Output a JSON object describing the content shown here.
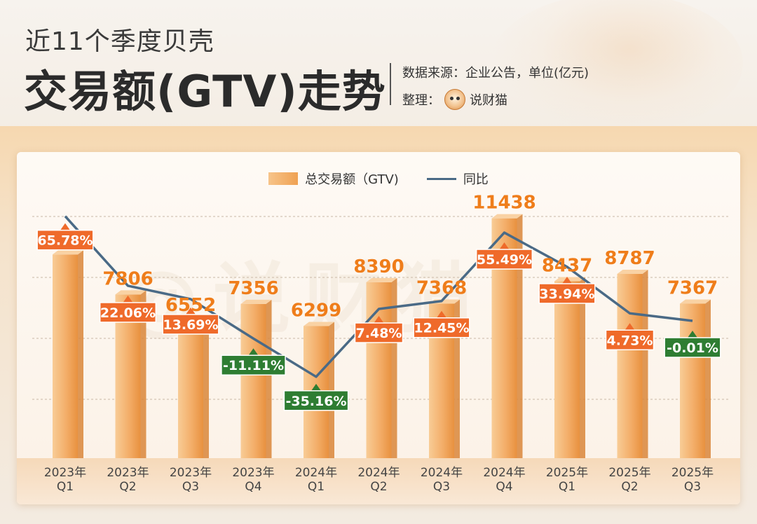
{
  "header": {
    "subtitle": "近11个季度贝壳",
    "title": "交易额(GTV)走势",
    "source": "数据来源：企业公告，单位(亿元)",
    "credit_prefix": "整理：",
    "credit_name": "说财猫"
  },
  "watermark": "@说财猫",
  "colors": {
    "bar_light": "#f7c48a",
    "bar_dark": "#ef9a46",
    "value_text": "#ef7d1a",
    "line": "#4a6a86",
    "positive_badge": "#ef6a2a",
    "negative_badge": "#2e7d32"
  },
  "chart_data": {
    "type": "bar",
    "categories": [
      "2023年 Q1",
      "2023年 Q2",
      "2023年 Q3",
      "2023年 Q4",
      "2024年 Q1",
      "2024年 Q2",
      "2024年 Q3",
      "2024年 Q4",
      "2025年 Q1",
      "2025年 Q2",
      "2025年 Q3"
    ],
    "category_lines": [
      [
        "2023年",
        "Q1"
      ],
      [
        "2023年",
        "Q2"
      ],
      [
        "2023年",
        "Q3"
      ],
      [
        "2023年",
        "Q4"
      ],
      [
        "2024年",
        "Q1"
      ],
      [
        "2024年",
        "Q2"
      ],
      [
        "2024年",
        "Q3"
      ],
      [
        "2024年",
        "Q4"
      ],
      [
        "2025年",
        "Q1"
      ],
      [
        "2025年",
        "Q2"
      ],
      [
        "2025年",
        "Q3"
      ]
    ],
    "series": [
      {
        "name": "总交易额（GTV)",
        "type": "bar",
        "values": [
          9715,
          7806,
          6552,
          7356,
          6299,
          8390,
          7368,
          11438,
          8437,
          8787,
          7367
        ]
      },
      {
        "name": "同比",
        "type": "line",
        "values": [
          65.78,
          22.06,
          13.69,
          -11.11,
          -35.16,
          7.48,
          12.45,
          55.49,
          33.94,
          4.73,
          -0.01
        ],
        "labels": [
          "65.78%",
          "22.06%",
          "13.69%",
          "-11.11%",
          "-35.16%",
          "7.48%",
          "12.45%",
          "55.49%",
          "33.94%",
          "4.73%",
          "-0.01%"
        ]
      }
    ],
    "legend": "top-center",
    "grid": true
  }
}
